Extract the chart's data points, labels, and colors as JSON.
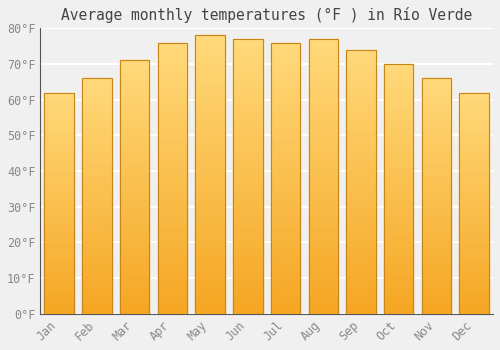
{
  "title": "Average monthly temperatures (°F ) in Río Verde",
  "months": [
    "Jan",
    "Feb",
    "Mar",
    "Apr",
    "May",
    "Jun",
    "Jul",
    "Aug",
    "Sep",
    "Oct",
    "Nov",
    "Dec"
  ],
  "values": [
    62,
    66,
    71,
    76,
    78,
    77,
    76,
    77,
    74,
    70,
    66,
    62
  ],
  "bar_color_bottom": "#F5A623",
  "bar_color_top": "#FFD97A",
  "bar_color_mid": "#FFBE3D",
  "bar_edge_color": "#C8861A",
  "background_color": "#F0F0F0",
  "plot_bg_color": "#F0F0F0",
  "grid_color": "#FFFFFF",
  "tick_label_color": "#888888",
  "title_color": "#444444",
  "ylim": [
    0,
    80
  ],
  "yticks": [
    0,
    10,
    20,
    30,
    40,
    50,
    60,
    70,
    80
  ],
  "ytick_labels": [
    "0°F",
    "10°F",
    "20°F",
    "30°F",
    "40°F",
    "50°F",
    "60°F",
    "70°F",
    "80°F"
  ],
  "font_family": "monospace",
  "title_fontsize": 10.5,
  "tick_fontsize": 8.5
}
